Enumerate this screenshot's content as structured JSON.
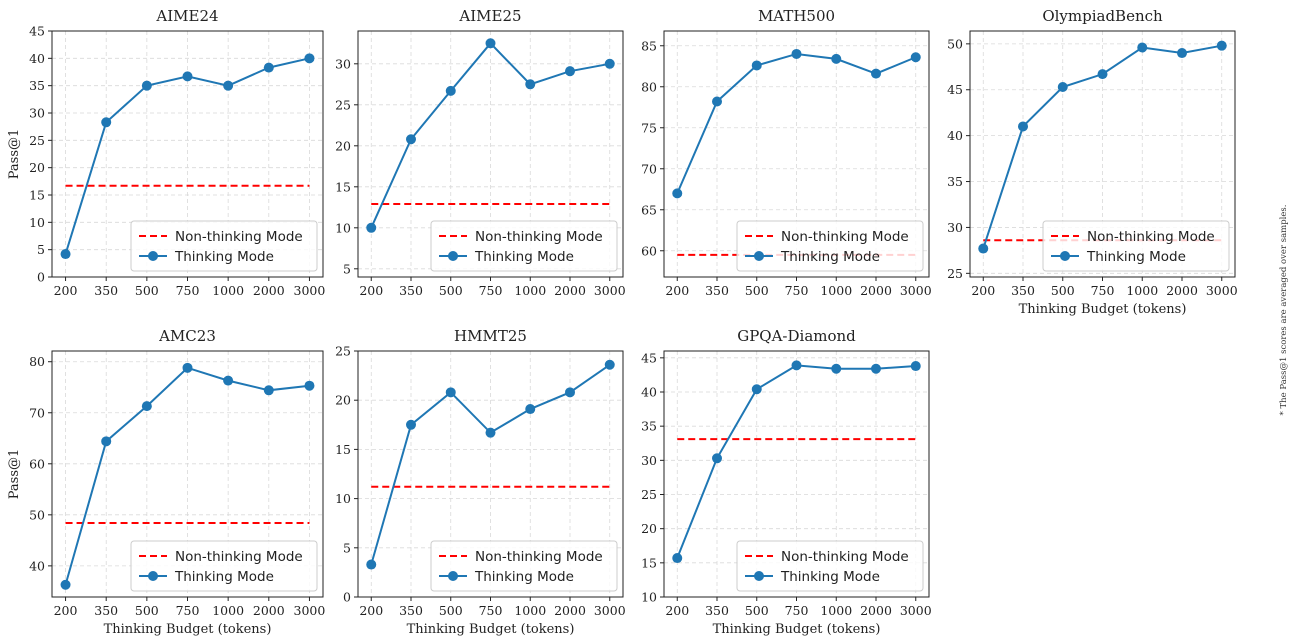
{
  "figure": {
    "footnote": "* The Pass@1 scores are averaged over samples.",
    "colors": {
      "thinking": "#1f77b4",
      "non_thinking": "#ff0000",
      "grid": "#d9d9d9"
    }
  },
  "chart_data": [
    {
      "type": "line",
      "title": "AIME24",
      "xlabel": "",
      "ylabel": "Pass@1",
      "categories": [
        "200",
        "350",
        "500",
        "750",
        "1000",
        "2000",
        "3000"
      ],
      "ylim": [
        0,
        45
      ],
      "yticks": [
        0,
        5,
        10,
        15,
        20,
        25,
        30,
        35,
        40,
        45
      ],
      "grid": true,
      "legend": "lower right",
      "series": [
        {
          "name": "Non-thinking Mode",
          "style": "dashed",
          "color": "#ff0000",
          "values": [
            16.7,
            16.7,
            16.7,
            16.7,
            16.7,
            16.7,
            16.7
          ]
        },
        {
          "name": "Thinking Mode",
          "style": "solid-marker",
          "color": "#1f77b4",
          "values": [
            4.2,
            28.3,
            35.0,
            36.7,
            35.0,
            38.3,
            40.0
          ]
        }
      ]
    },
    {
      "type": "line",
      "title": "AIME25",
      "xlabel": "",
      "ylabel": "",
      "categories": [
        "200",
        "350",
        "500",
        "750",
        "1000",
        "2000",
        "3000"
      ],
      "ylim": [
        4.0,
        34.0
      ],
      "yticks": [
        5,
        10,
        15,
        20,
        25,
        30
      ],
      "grid": true,
      "legend": "lower right",
      "series": [
        {
          "name": "Non-thinking Mode",
          "style": "dashed",
          "color": "#ff0000",
          "values": [
            12.9,
            12.9,
            12.9,
            12.9,
            12.9,
            12.9,
            12.9
          ]
        },
        {
          "name": "Thinking Mode",
          "style": "solid-marker",
          "color": "#1f77b4",
          "values": [
            10.0,
            20.8,
            26.7,
            32.5,
            27.5,
            29.1,
            30.0
          ]
        }
      ]
    },
    {
      "type": "line",
      "title": "MATH500",
      "xlabel": "",
      "ylabel": "",
      "categories": [
        "200",
        "350",
        "500",
        "750",
        "1000",
        "2000",
        "3000"
      ],
      "ylim": [
        56.8,
        86.8
      ],
      "yticks": [
        60,
        65,
        70,
        75,
        80,
        85
      ],
      "grid": true,
      "legend": "lower right",
      "series": [
        {
          "name": "Non-thinking Mode",
          "style": "dashed",
          "color": "#ff0000",
          "values": [
            59.5,
            59.5,
            59.5,
            59.5,
            59.5,
            59.5,
            59.5
          ]
        },
        {
          "name": "Thinking Mode",
          "style": "solid-marker",
          "color": "#1f77b4",
          "values": [
            67.0,
            78.2,
            82.6,
            84.0,
            83.4,
            81.6,
            83.6
          ]
        }
      ]
    },
    {
      "type": "line",
      "title": "OlympiadBench",
      "xlabel": "Thinking Budget (tokens)",
      "ylabel": "",
      "categories": [
        "200",
        "350",
        "500",
        "750",
        "1000",
        "2000",
        "3000"
      ],
      "ylim": [
        24.6,
        51.4
      ],
      "yticks": [
        25,
        30,
        35,
        40,
        45,
        50
      ],
      "grid": true,
      "legend": "lower right",
      "series": [
        {
          "name": "Non-thinking Mode",
          "style": "dashed",
          "color": "#ff0000",
          "values": [
            28.6,
            28.6,
            28.6,
            28.6,
            28.6,
            28.6,
            28.6
          ]
        },
        {
          "name": "Thinking Mode",
          "style": "solid-marker",
          "color": "#1f77b4",
          "values": [
            27.7,
            41.0,
            45.3,
            46.7,
            49.6,
            49.0,
            49.8
          ]
        }
      ]
    },
    {
      "type": "line",
      "title": "AMC23",
      "xlabel": "Thinking Budget (tokens)",
      "ylabel": "Pass@1",
      "categories": [
        "200",
        "350",
        "500",
        "750",
        "1000",
        "2000",
        "3000"
      ],
      "ylim": [
        33.9,
        82.1
      ],
      "yticks": [
        40,
        50,
        60,
        70,
        80
      ],
      "grid": true,
      "legend": "lower right",
      "series": [
        {
          "name": "Non-thinking Mode",
          "style": "dashed",
          "color": "#ff0000",
          "values": [
            48.4,
            48.4,
            48.4,
            48.4,
            48.4,
            48.4,
            48.4
          ]
        },
        {
          "name": "Thinking Mode",
          "style": "solid-marker",
          "color": "#1f77b4",
          "values": [
            36.3,
            64.4,
            71.3,
            78.8,
            76.3,
            74.4,
            75.3
          ]
        }
      ]
    },
    {
      "type": "line",
      "title": "HMMT25",
      "xlabel": "Thinking Budget (tokens)",
      "ylabel": "",
      "categories": [
        "200",
        "350",
        "500",
        "750",
        "1000",
        "2000",
        "3000"
      ],
      "ylim": [
        0,
        25
      ],
      "yticks": [
        0,
        5,
        10,
        15,
        20,
        25
      ],
      "grid": true,
      "legend": "lower right",
      "series": [
        {
          "name": "Non-thinking Mode",
          "style": "dashed",
          "color": "#ff0000",
          "values": [
            11.2,
            11.2,
            11.2,
            11.2,
            11.2,
            11.2,
            11.2
          ]
        },
        {
          "name": "Thinking Mode",
          "style": "solid-marker",
          "color": "#1f77b4",
          "values": [
            3.3,
            17.5,
            20.8,
            16.7,
            19.1,
            20.8,
            23.6
          ]
        }
      ]
    },
    {
      "type": "line",
      "title": "GPQA-Diamond",
      "xlabel": "Thinking Budget (tokens)",
      "ylabel": "",
      "categories": [
        "200",
        "350",
        "500",
        "750",
        "1000",
        "2000",
        "3000"
      ],
      "ylim": [
        10,
        46
      ],
      "yticks": [
        10,
        15,
        20,
        25,
        30,
        35,
        40,
        45
      ],
      "grid": true,
      "legend": "lower right",
      "series": [
        {
          "name": "Non-thinking Mode",
          "style": "dashed",
          "color": "#ff0000",
          "values": [
            33.1,
            33.1,
            33.1,
            33.1,
            33.1,
            33.1,
            33.1
          ]
        },
        {
          "name": "Thinking Mode",
          "style": "solid-marker",
          "color": "#1f77b4",
          "values": [
            15.7,
            30.3,
            40.4,
            43.9,
            43.4,
            43.4,
            43.8
          ]
        }
      ]
    }
  ]
}
